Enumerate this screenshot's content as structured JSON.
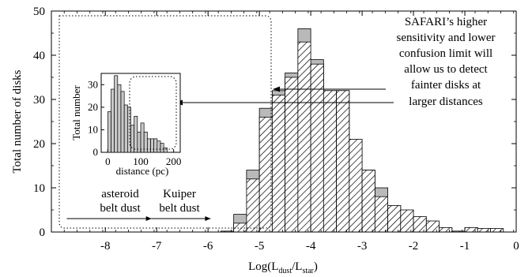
{
  "chart_data": {
    "type": "bar",
    "xlabel": "Log(L",
    "xlabel_sub1": "dust",
    "xlabel_mid": "/L",
    "xlabel_sub2": "star",
    "xlabel_end": ")",
    "ylabel": "Total number of disks",
    "xlim": [
      -9.05,
      0
    ],
    "ylim": [
      0,
      50
    ],
    "xticks": [
      -8,
      -7,
      -6,
      -5,
      -4,
      -3,
      -2,
      -1,
      0
    ],
    "yticks": [
      0,
      10,
      20,
      30,
      40,
      50
    ],
    "bin_width": 0.25,
    "series": [
      {
        "style": "gray-fill",
        "x_start": [
          -5.75,
          -5.5,
          -5.25,
          -5.0,
          -4.75,
          -4.5,
          -4.25,
          -4.0,
          -3.75,
          -3.5,
          -3.25,
          -3.0,
          -2.75,
          -2.5,
          -2.25,
          -2.0,
          -1.75,
          -1.5,
          -1.25,
          -1.0,
          -0.75,
          -0.5
        ],
        "values": [
          0.2,
          4,
          14,
          28,
          32,
          36,
          46,
          39,
          32,
          32,
          21,
          14,
          10,
          6,
          4,
          3,
          2,
          1,
          0.2,
          1,
          0.5,
          0.2
        ]
      },
      {
        "style": "hatched",
        "x_start": [
          -5.75,
          -5.5,
          -5.25,
          -5.0,
          -4.75,
          -4.5,
          -4.25,
          -4.0,
          -3.75,
          -3.5,
          -3.25,
          -3.0,
          -2.75,
          -2.5,
          -2.25,
          -2.0,
          -1.75,
          -1.5,
          -1.25,
          -1.0,
          -0.75,
          -0.5
        ],
        "values": [
          0.2,
          2,
          12,
          26,
          31,
          35,
          43,
          38,
          32,
          32,
          21,
          14,
          8,
          6,
          5,
          3.5,
          2.5,
          1,
          0.2,
          1,
          0.8,
          0.8
        ]
      }
    ],
    "annotations": {
      "callout": [
        "SAFARI’s higher",
        "sensitivity and lower",
        "confusion limit will",
        "allow us to detect",
        "fainter disks at",
        "larger distances"
      ],
      "asteroid": [
        "asteroid",
        "belt dust"
      ],
      "kuiper": [
        "Kuiper",
        "belt dust"
      ],
      "asteroid_range": [
        -8.75,
        -7.1
      ],
      "kuiper_range": [
        -7.1,
        -5.95
      ]
    },
    "inset": {
      "type": "bar",
      "xlabel": "distance (pc)",
      "ylabel": "Total number",
      "xlim": [
        -20,
        220
      ],
      "ylim": [
        0,
        35
      ],
      "xticks": [
        0,
        100,
        200
      ],
      "yticks": [
        0,
        10,
        20,
        30
      ],
      "bin_width": 10,
      "x_start": [
        0,
        10,
        20,
        30,
        40,
        50,
        60,
        70,
        80,
        90,
        100,
        110,
        120,
        130,
        140,
        150,
        160,
        170
      ],
      "values": [
        18,
        28,
        34,
        30,
        27,
        21,
        20,
        12,
        16,
        9,
        13,
        9,
        6,
        6,
        6,
        5,
        4,
        2
      ]
    }
  }
}
